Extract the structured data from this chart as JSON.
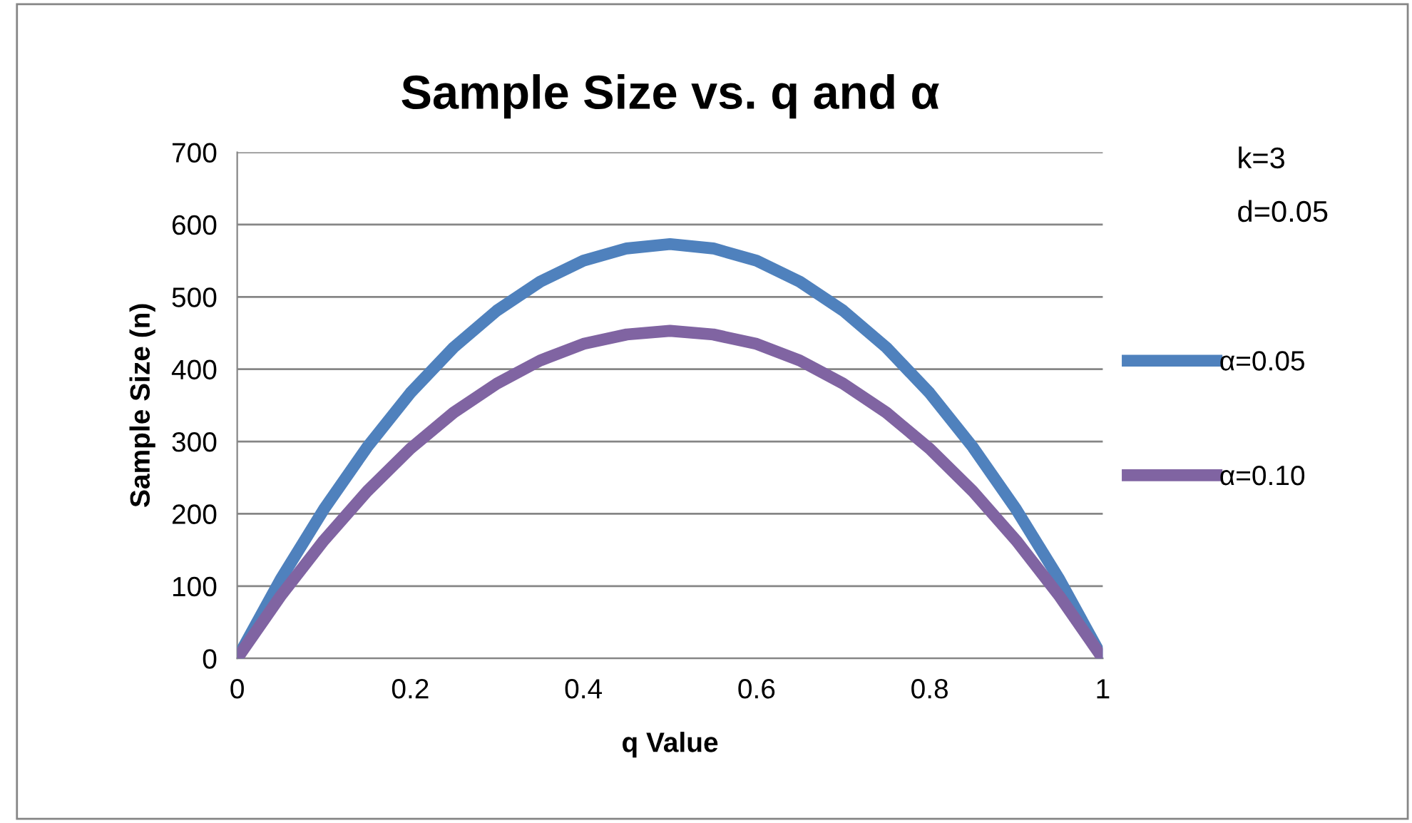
{
  "chart_data": {
    "type": "line",
    "title": "Sample Size vs. q and α",
    "xlabel": "q Value",
    "ylabel": "Sample Size (n)",
    "x": [
      0,
      0.05,
      0.1,
      0.15,
      0.2,
      0.25,
      0.3,
      0.35,
      0.4,
      0.45,
      0.5,
      0.55,
      0.6,
      0.65,
      0.7,
      0.75,
      0.8,
      0.85,
      0.9,
      0.95,
      1
    ],
    "series": [
      {
        "name": "α=0.05",
        "color": "#4f81bd",
        "values": [
          0,
          109,
          206,
          292,
          367,
          430,
          481,
          521,
          550,
          567,
          573,
          567,
          550,
          521,
          481,
          430,
          367,
          292,
          206,
          109,
          0
        ]
      },
      {
        "name": "α=0.10",
        "color": "#8064a2",
        "values": [
          0,
          86,
          163,
          231,
          290,
          340,
          380,
          412,
          435,
          448,
          453,
          448,
          435,
          412,
          380,
          340,
          290,
          231,
          163,
          86,
          0
        ]
      }
    ],
    "annotations": [
      "k=3",
      "d=0.05"
    ],
    "xlim": [
      0,
      1
    ],
    "xticks": [
      0,
      0.2,
      0.4,
      0.6,
      0.8,
      1
    ],
    "ylim": [
      0,
      700
    ],
    "yticks": [
      0,
      100,
      200,
      300,
      400,
      500,
      600,
      700
    ],
    "grid": "y",
    "legend": "right",
    "marker": "none",
    "line_style": "solid"
  }
}
